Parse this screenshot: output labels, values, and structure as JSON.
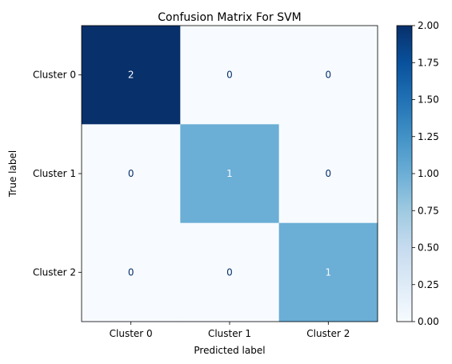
{
  "chart_data": {
    "type": "heatmap",
    "title": "Confusion Matrix For SVM",
    "xlabel": "Predicted label",
    "ylabel": "True label",
    "x_categories": [
      "Cluster 0",
      "Cluster 1",
      "Cluster 2"
    ],
    "y_categories": [
      "Cluster 0",
      "Cluster 1",
      "Cluster 2"
    ],
    "values": [
      [
        2,
        0,
        0
      ],
      [
        0,
        1,
        0
      ],
      [
        0,
        0,
        1
      ]
    ],
    "colormap": "Blues",
    "colorbar": {
      "range": [
        0,
        2
      ],
      "ticks": [
        "0.00",
        "0.25",
        "0.50",
        "0.75",
        "1.00",
        "1.25",
        "1.50",
        "1.75",
        "2.00"
      ]
    },
    "colors": {
      "low": "#f7fbff",
      "mid": "#6baed6",
      "high": "#08306b",
      "text_on_light": "#08306b",
      "text_on_dark": "#f7fbff"
    }
  }
}
